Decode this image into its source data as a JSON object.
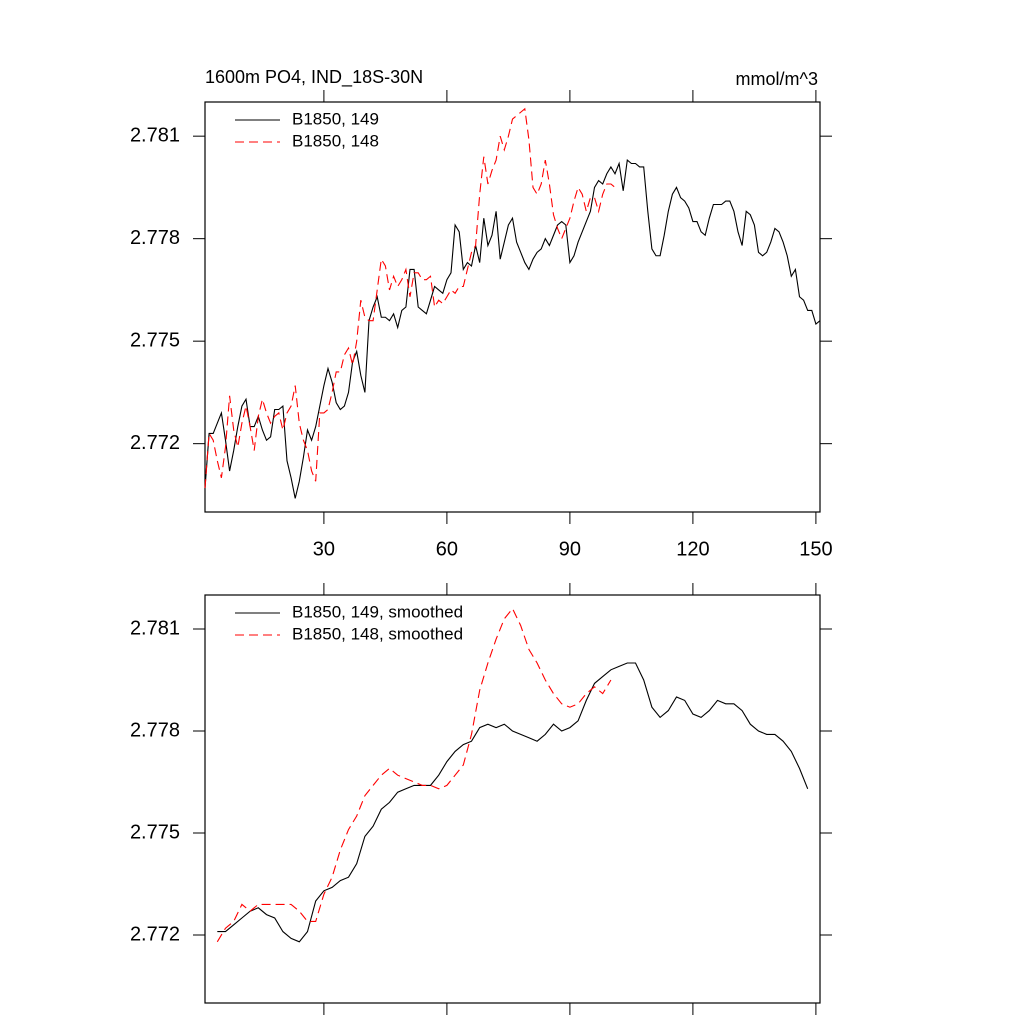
{
  "chart_data": [
    {
      "type": "line",
      "title": "1600m PO4, IND_18S-30N",
      "units": "mmol/m^3",
      "xlim": [
        1,
        151
      ],
      "xticks": [
        30,
        60,
        90,
        120,
        150
      ],
      "x_tick_labels": true,
      "ylim": [
        2.77,
        2.782
      ],
      "yticks": [
        2.772,
        2.775,
        2.778,
        2.781
      ],
      "legend": "upper-left",
      "series": [
        {
          "name": "B1850, 149",
          "color": "#000000",
          "dash": false,
          "x": [
            1,
            2,
            3,
            4,
            5,
            6,
            7,
            8,
            9,
            10,
            11,
            12,
            13,
            14,
            15,
            16,
            17,
            18,
            19,
            20,
            21,
            22,
            23,
            24,
            25,
            26,
            27,
            28,
            29,
            30,
            31,
            32,
            33,
            34,
            35,
            36,
            37,
            38,
            39,
            40,
            41,
            42,
            43,
            44,
            45,
            46,
            47,
            48,
            49,
            50,
            51,
            52,
            53,
            54,
            55,
            56,
            57,
            58,
            59,
            60,
            61,
            62,
            63,
            64,
            65,
            66,
            67,
            68,
            69,
            70,
            71,
            72,
            73,
            74,
            75,
            76,
            77,
            78,
            79,
            80,
            81,
            82,
            83,
            84,
            85,
            86,
            87,
            88,
            89,
            90,
            91,
            92,
            93,
            94,
            95,
            96,
            97,
            98,
            99,
            100,
            101,
            102,
            103,
            104,
            105,
            106,
            107,
            108,
            109,
            110,
            111,
            112,
            113,
            114,
            115,
            116,
            117,
            118,
            119,
            120,
            121,
            122,
            123,
            124,
            125,
            126,
            127,
            128,
            129,
            130,
            131,
            132,
            133,
            134,
            135,
            136,
            137,
            138,
            139,
            140,
            141,
            142,
            143,
            144,
            145,
            146,
            147,
            148,
            149,
            150,
            151
          ],
          "values": [
            2.7707,
            2.7723,
            2.7723,
            2.7726,
            2.7729,
            2.7721,
            2.7712,
            2.7718,
            2.7725,
            2.7731,
            2.7733,
            2.7725,
            2.7725,
            2.7728,
            2.7724,
            2.7721,
            2.7722,
            2.773,
            2.773,
            2.7731,
            2.7715,
            2.771,
            2.7704,
            2.7709,
            2.7716,
            2.7724,
            2.7721,
            2.7725,
            2.7731,
            2.7737,
            2.7742,
            2.7738,
            2.7732,
            2.773,
            2.7731,
            2.7735,
            2.7744,
            2.7747,
            2.774,
            2.7735,
            2.7756,
            2.776,
            2.7763,
            2.7757,
            2.7757,
            2.7756,
            2.7758,
            2.7754,
            2.7759,
            2.776,
            2.7771,
            2.7771,
            2.776,
            2.7759,
            2.7758,
            2.7762,
            2.7766,
            2.7765,
            2.7764,
            2.7768,
            2.777,
            2.7784,
            2.7782,
            2.7771,
            2.7773,
            2.7772,
            2.7778,
            2.7773,
            2.7786,
            2.7778,
            2.7781,
            2.7788,
            2.7774,
            2.7779,
            2.7784,
            2.7786,
            2.7779,
            2.7776,
            2.7773,
            2.7771,
            2.7774,
            2.7776,
            2.7777,
            2.778,
            2.7778,
            2.7781,
            2.7784,
            2.7785,
            2.7784,
            2.7773,
            2.7775,
            2.7779,
            2.7782,
            2.7785,
            2.7788,
            2.7795,
            2.7797,
            2.7796,
            2.7799,
            2.7801,
            2.7799,
            2.7802,
            2.7794,
            2.7803,
            2.7802,
            2.7802,
            2.7801,
            2.7801,
            2.7788,
            2.7777,
            2.7775,
            2.7775,
            2.7781,
            2.7788,
            2.7793,
            2.7795,
            2.7792,
            2.7791,
            2.7789,
            2.7785,
            2.7785,
            2.7782,
            2.7781,
            2.7786,
            2.779,
            2.779,
            2.779,
            2.7791,
            2.7791,
            2.7788,
            2.7782,
            2.7778,
            2.7788,
            2.7787,
            2.7784,
            2.7776,
            2.7775,
            2.7776,
            2.7779,
            2.7783,
            2.7782,
            2.7779,
            2.7775,
            2.7769,
            2.7771,
            2.7763,
            2.7762,
            2.7759,
            2.7759,
            2.7755,
            2.7756
          ]
        },
        {
          "name": "B1850, 148",
          "color": "#ff0000",
          "dash": true,
          "x": [
            1,
            2,
            3,
            4,
            5,
            6,
            7,
            8,
            9,
            10,
            11,
            12,
            13,
            14,
            15,
            16,
            17,
            18,
            19,
            20,
            21,
            22,
            23,
            24,
            25,
            26,
            27,
            28,
            29,
            30,
            31,
            32,
            33,
            34,
            35,
            36,
            37,
            38,
            39,
            40,
            41,
            42,
            43,
            44,
            45,
            46,
            47,
            48,
            49,
            50,
            51,
            52,
            53,
            54,
            55,
            56,
            57,
            58,
            59,
            60,
            61,
            62,
            63,
            64,
            65,
            66,
            67,
            68,
            69,
            70,
            71,
            72,
            73,
            74,
            75,
            76,
            77,
            78,
            79,
            80,
            81,
            82,
            83,
            84,
            85,
            86,
            87,
            88,
            89,
            90,
            91,
            92,
            93,
            94,
            95,
            96,
            97,
            98,
            99,
            100,
            101
          ],
          "values": [
            2.7707,
            2.7723,
            2.7721,
            2.7715,
            2.771,
            2.7719,
            2.7734,
            2.7724,
            2.7719,
            2.7726,
            2.7731,
            2.7725,
            2.7718,
            2.7728,
            2.7733,
            2.7729,
            2.7726,
            2.7728,
            2.7729,
            2.7724,
            2.7729,
            2.7731,
            2.7737,
            2.7726,
            2.7721,
            2.7718,
            2.7712,
            2.7709,
            2.7729,
            2.7729,
            2.773,
            2.7735,
            2.7741,
            2.7741,
            2.7746,
            2.7748,
            2.7743,
            2.775,
            2.7762,
            2.7757,
            2.7756,
            2.7756,
            2.7765,
            2.7774,
            2.7772,
            2.7765,
            2.7769,
            2.7766,
            2.7768,
            2.7771,
            2.7763,
            2.777,
            2.777,
            2.7768,
            2.7768,
            2.7769,
            2.776,
            2.7762,
            2.7761,
            2.7763,
            2.7765,
            2.7764,
            2.7766,
            2.7766,
            2.7771,
            2.7776,
            2.7778,
            2.7793,
            2.7804,
            2.7796,
            2.78,
            2.7803,
            2.781,
            2.7806,
            2.781,
            2.7815,
            2.7816,
            2.7817,
            2.7818,
            2.7809,
            2.7795,
            2.7793,
            2.7796,
            2.7803,
            2.7796,
            2.7787,
            2.7783,
            2.778,
            2.7783,
            2.7786,
            2.7791,
            2.7795,
            2.7793,
            2.7788,
            2.7792,
            2.7792,
            2.7788,
            2.7793,
            2.7796,
            2.7796,
            2.7795
          ]
        }
      ]
    },
    {
      "type": "line",
      "xlim": [
        1,
        151
      ],
      "xticks": [
        30,
        60,
        90,
        120,
        150
      ],
      "x_tick_labels": false,
      "ylim": [
        2.77,
        2.782
      ],
      "yticks": [
        2.772,
        2.775,
        2.778,
        2.781
      ],
      "legend": "upper-left",
      "series": [
        {
          "name": "B1850, 149, smoothed",
          "color": "#000000",
          "dash": false,
          "x": [
            4,
            6,
            8,
            10,
            12,
            14,
            16,
            18,
            20,
            22,
            24,
            26,
            28,
            30,
            32,
            34,
            36,
            38,
            40,
            42,
            44,
            46,
            48,
            50,
            52,
            54,
            56,
            58,
            60,
            62,
            64,
            66,
            68,
            70,
            72,
            74,
            76,
            78,
            80,
            82,
            84,
            86,
            88,
            90,
            92,
            94,
            96,
            98,
            100,
            102,
            104,
            106,
            108,
            110,
            112,
            114,
            116,
            118,
            120,
            122,
            124,
            126,
            128,
            130,
            132,
            134,
            136,
            138,
            140,
            142,
            144,
            146,
            148
          ],
          "values": [
            2.7721,
            2.7721,
            2.7723,
            2.7725,
            2.7727,
            2.7728,
            2.7726,
            2.7725,
            2.7721,
            2.7719,
            2.7718,
            2.7721,
            2.773,
            2.7733,
            2.7734,
            2.7736,
            2.7737,
            2.7741,
            2.7749,
            2.7752,
            2.7757,
            2.7759,
            2.7762,
            2.7763,
            2.7764,
            2.7764,
            2.7764,
            2.7767,
            2.7771,
            2.7774,
            2.7776,
            2.7777,
            2.7781,
            2.7782,
            2.7781,
            2.7782,
            2.778,
            2.7779,
            2.7778,
            2.7777,
            2.7779,
            2.7782,
            2.778,
            2.7781,
            2.7783,
            2.7789,
            2.7794,
            2.7796,
            2.7798,
            2.7799,
            2.78,
            2.78,
            2.7795,
            2.7787,
            2.7784,
            2.7786,
            2.779,
            2.7789,
            2.7785,
            2.7784,
            2.7786,
            2.7789,
            2.7788,
            2.7788,
            2.7786,
            2.7782,
            2.778,
            2.7779,
            2.7779,
            2.7777,
            2.7774,
            2.7769,
            2.7763
          ]
        },
        {
          "name": "B1850, 148, smoothed",
          "color": "#ff0000",
          "dash": true,
          "x": [
            4,
            6,
            8,
            10,
            12,
            14,
            16,
            18,
            20,
            22,
            24,
            26,
            28,
            30,
            32,
            34,
            36,
            38,
            40,
            42,
            44,
            46,
            48,
            50,
            52,
            54,
            56,
            58,
            60,
            62,
            64,
            66,
            68,
            70,
            72,
            74,
            76,
            78,
            80,
            82,
            84,
            86,
            88,
            90,
            92,
            94,
            96,
            98,
            100
          ],
          "values": [
            2.7718,
            2.7722,
            2.7724,
            2.7729,
            2.7727,
            2.7729,
            2.7729,
            2.7729,
            2.7729,
            2.7729,
            2.7727,
            2.7724,
            2.7724,
            2.7732,
            2.7737,
            2.7745,
            2.7751,
            2.7755,
            2.7761,
            2.7764,
            2.7767,
            2.7769,
            2.7767,
            2.7766,
            2.7765,
            2.7764,
            2.7764,
            2.7763,
            2.7764,
            2.7767,
            2.777,
            2.7779,
            2.7792,
            2.78,
            2.7807,
            2.7813,
            2.7816,
            2.7811,
            2.7804,
            2.78,
            2.7795,
            2.7791,
            2.7788,
            2.7787,
            2.7788,
            2.7791,
            2.7793,
            2.7791,
            2.7795
          ]
        }
      ]
    }
  ]
}
